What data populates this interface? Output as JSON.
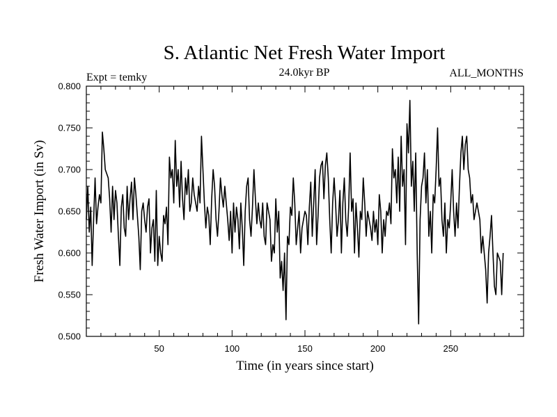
{
  "chart_data": {
    "type": "line",
    "title": "S. Atlantic Net Fresh Water Import",
    "subtitle_left": "Expt = temky",
    "subtitle_center": "24.0kyr BP",
    "subtitle_right": "ALL_MONTHS",
    "xlabel": "Time (in years since start)",
    "ylabel": "Fresh Water Import (in Sv)",
    "xlim": [
      0,
      300
    ],
    "ylim": [
      0.5,
      0.8
    ],
    "xticks": [
      50,
      100,
      150,
      200,
      250
    ],
    "yticks": [
      0.5,
      0.55,
      0.6,
      0.65,
      0.7,
      0.75,
      0.8
    ],
    "ytick_labels": [
      "0.500",
      "0.550",
      "0.600",
      "0.650",
      "0.700",
      "0.750",
      "0.800"
    ],
    "grid": false,
    "series": [
      {
        "name": "Fresh Water Import",
        "color": "#000000",
        "x_start": 0,
        "x_step": 1,
        "values": [
          0.64,
          0.68,
          0.625,
          0.655,
          0.585,
          0.64,
          0.69,
          0.635,
          0.655,
          0.67,
          0.66,
          0.745,
          0.725,
          0.7,
          0.695,
          0.69,
          0.665,
          0.625,
          0.68,
          0.64,
          0.675,
          0.66,
          0.62,
          0.585,
          0.655,
          0.67,
          0.63,
          0.62,
          0.68,
          0.64,
          0.665,
          0.685,
          0.64,
          0.69,
          0.67,
          0.645,
          0.62,
          0.58,
          0.65,
          0.66,
          0.64,
          0.625,
          0.655,
          0.665,
          0.6,
          0.63,
          0.64,
          0.59,
          0.675,
          0.585,
          0.62,
          0.6,
          0.59,
          0.645,
          0.635,
          0.655,
          0.61,
          0.715,
          0.69,
          0.7,
          0.66,
          0.735,
          0.68,
          0.7,
          0.655,
          0.71,
          0.665,
          0.64,
          0.69,
          0.67,
          0.7,
          0.65,
          0.66,
          0.69,
          0.67,
          0.66,
          0.65,
          0.68,
          0.66,
          0.74,
          0.7,
          0.66,
          0.63,
          0.655,
          0.645,
          0.61,
          0.665,
          0.7,
          0.68,
          0.64,
          0.62,
          0.65,
          0.69,
          0.67,
          0.655,
          0.68,
          0.66,
          0.64,
          0.615,
          0.65,
          0.6,
          0.66,
          0.625,
          0.655,
          0.64,
          0.605,
          0.66,
          0.63,
          0.585,
          0.65,
          0.68,
          0.69,
          0.64,
          0.62,
          0.655,
          0.7,
          0.665,
          0.635,
          0.66,
          0.64,
          0.63,
          0.66,
          0.62,
          0.61,
          0.66,
          0.65,
          0.64,
          0.59,
          0.61,
          0.6,
          0.665,
          0.625,
          0.65,
          0.57,
          0.59,
          0.555,
          0.6,
          0.52,
          0.62,
          0.61,
          0.655,
          0.645,
          0.69,
          0.66,
          0.61,
          0.63,
          0.65,
          0.6,
          0.63,
          0.64,
          0.65,
          0.645,
          0.61,
          0.655,
          0.685,
          0.62,
          0.66,
          0.7,
          0.61,
          0.645,
          0.69,
          0.705,
          0.71,
          0.665,
          0.705,
          0.72,
          0.69,
          0.64,
          0.6,
          0.66,
          0.69,
          0.66,
          0.62,
          0.64,
          0.675,
          0.6,
          0.66,
          0.69,
          0.64,
          0.62,
          0.655,
          0.72,
          0.65,
          0.665,
          0.6,
          0.66,
          0.63,
          0.595,
          0.65,
          0.64,
          0.69,
          0.66,
          0.62,
          0.65,
          0.64,
          0.63,
          0.615,
          0.65,
          0.625,
          0.64,
          0.61,
          0.67,
          0.65,
          0.6,
          0.64,
          0.62,
          0.65,
          0.645,
          0.66,
          0.635,
          0.725,
          0.69,
          0.7,
          0.66,
          0.715,
          0.65,
          0.74,
          0.68,
          0.7,
          0.61,
          0.755,
          0.72,
          0.783,
          0.68,
          0.71,
          0.65,
          0.72,
          0.6,
          0.515,
          0.64,
          0.68,
          0.69,
          0.72,
          0.66,
          0.7,
          0.62,
          0.65,
          0.6,
          0.67,
          0.66,
          0.7,
          0.75,
          0.68,
          0.69,
          0.64,
          0.62,
          0.66,
          0.6,
          0.64,
          0.63,
          0.66,
          0.7,
          0.65,
          0.62,
          0.66,
          0.63,
          0.68,
          0.72,
          0.74,
          0.7,
          0.73,
          0.74,
          0.7,
          0.69,
          0.66,
          0.67,
          0.64,
          0.65,
          0.66,
          0.65,
          0.64,
          0.6,
          0.62,
          0.6,
          0.58,
          0.54,
          0.6,
          0.62,
          0.645,
          0.6,
          0.56,
          0.55,
          0.6,
          0.595,
          0.59,
          0.55,
          0.6
        ]
      }
    ]
  }
}
